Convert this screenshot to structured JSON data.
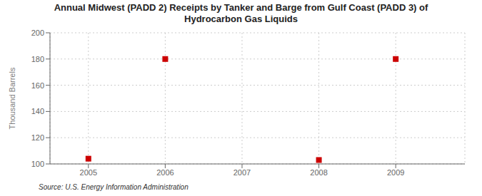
{
  "chart_data": {
    "type": "scatter",
    "title": "Annual Midwest (PADD 2) Receipts by Tanker and Barge from Gulf Coast (PADD 3) of\nHydrocarbon Gas Liquids",
    "ylabel": "Thousand Barrels",
    "annotations": [
      "Source: U.S. Energy Information Administration"
    ],
    "x": [
      2005,
      2006,
      2008,
      2009
    ],
    "values": [
      104,
      180,
      103,
      180
    ],
    "xlim": [
      2004.5,
      2009.9
    ],
    "ylim": [
      100,
      200
    ],
    "xticks": [
      2005,
      2006,
      2007,
      2008,
      2009
    ],
    "yticks": [
      100,
      120,
      140,
      160,
      180,
      200
    ],
    "color": "#cc0000",
    "marker": "square",
    "grid": true
  }
}
